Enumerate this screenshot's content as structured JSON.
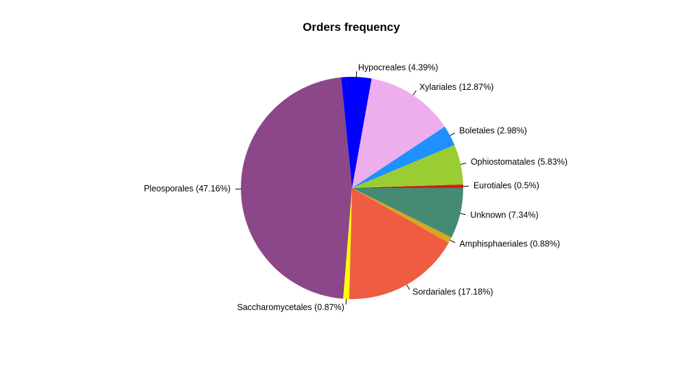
{
  "chart_data": {
    "type": "pie",
    "title": "Orders frequency",
    "start_angle_deg": 0,
    "direction": "counterclockwise",
    "slices": [
      {
        "label": "Eurotiales (0.5%)",
        "name": "Eurotiales",
        "value": 0.5,
        "color": "#DD1A0A"
      },
      {
        "label": "Ophiostomatales (5.83%)",
        "name": "Ophiostomatales",
        "value": 5.83,
        "color": "#9ACD32"
      },
      {
        "label": "Boletales (2.98%)",
        "name": "Boletales",
        "value": 2.98,
        "color": "#1E90FF"
      },
      {
        "label": "Xylariales (12.87%)",
        "name": "Xylariales",
        "value": 12.87,
        "color": "#EEAEEE"
      },
      {
        "label": "Hypocreales (4.39%)",
        "name": "Hypocreales",
        "value": 4.39,
        "color": "#0000FF"
      },
      {
        "label": "Pleosporales (47.16%)",
        "name": "Pleosporales",
        "value": 47.16,
        "color": "#8B4789"
      },
      {
        "label": "Saccharomycetales (0.87%)",
        "name": "Saccharomycetales",
        "value": 0.87,
        "color": "#FFFF00"
      },
      {
        "label": "Sordariales (17.18%)",
        "name": "Sordariales",
        "value": 17.18,
        "color": "#EE5C42"
      },
      {
        "label": "Amphisphaeriales (0.88%)",
        "name": "Amphisphaeriales",
        "value": 0.88,
        "color": "#DAA520"
      },
      {
        "label": "Unknown (7.34%)",
        "name": "Unknown",
        "value": 7.34,
        "color": "#458B74"
      }
    ]
  }
}
